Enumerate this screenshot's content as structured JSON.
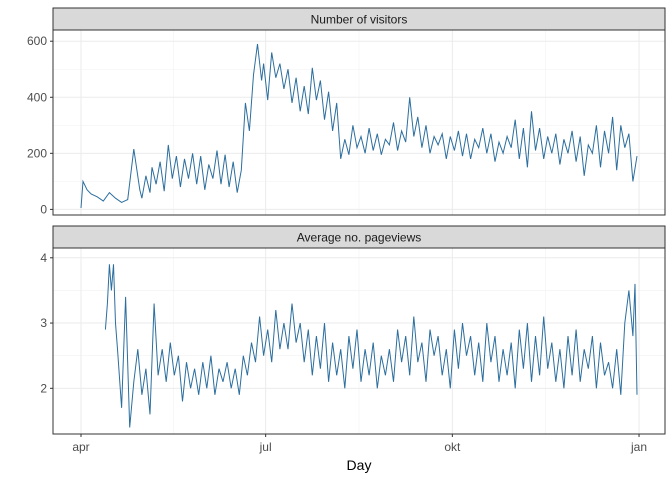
{
  "chart_data": {
    "type": "line",
    "xlabel": "Day",
    "x_tick_labels": [
      "apr",
      "jul",
      "okt",
      "jan"
    ],
    "x_tick_dates": [
      "2016-04-01",
      "2016-07-01",
      "2016-10-01",
      "2017-01-01"
    ],
    "x_start": "2016-04-01",
    "x_end": "2016-12-31",
    "grid": true,
    "line_color": "#2c6e9e",
    "panels": [
      {
        "title": "Number of visitors",
        "ylim": [
          -20,
          640
        ],
        "y_ticks": [
          0,
          200,
          400,
          600
        ],
        "y_tick_labels": [
          "0",
          "200",
          "400",
          "600"
        ],
        "x": [
          "2016-04-01",
          "2016-04-02",
          "2016-04-04",
          "2016-04-06",
          "2016-04-09",
          "2016-04-12",
          "2016-04-15",
          "2016-04-18",
          "2016-04-21",
          "2016-04-24",
          "2016-04-27",
          "2016-04-30",
          "2016-05-01",
          "2016-05-03",
          "2016-05-05",
          "2016-05-06",
          "2016-05-08",
          "2016-05-10",
          "2016-05-12",
          "2016-05-14",
          "2016-05-16",
          "2016-05-18",
          "2016-05-20",
          "2016-05-22",
          "2016-05-24",
          "2016-05-26",
          "2016-05-28",
          "2016-05-30",
          "2016-06-01",
          "2016-06-03",
          "2016-06-05",
          "2016-06-07",
          "2016-06-09",
          "2016-06-11",
          "2016-06-13",
          "2016-06-15",
          "2016-06-17",
          "2016-06-19",
          "2016-06-21",
          "2016-06-23",
          "2016-06-25",
          "2016-06-27",
          "2016-06-29",
          "2016-06-30",
          "2016-07-02",
          "2016-07-04",
          "2016-07-06",
          "2016-07-08",
          "2016-07-10",
          "2016-07-12",
          "2016-07-14",
          "2016-07-16",
          "2016-07-18",
          "2016-07-20",
          "2016-07-22",
          "2016-07-24",
          "2016-07-26",
          "2016-07-28",
          "2016-07-30",
          "2016-08-01",
          "2016-08-03",
          "2016-08-05",
          "2016-08-07",
          "2016-08-09",
          "2016-08-11",
          "2016-08-13",
          "2016-08-15",
          "2016-08-17",
          "2016-08-19",
          "2016-08-21",
          "2016-08-23",
          "2016-08-25",
          "2016-08-27",
          "2016-08-29",
          "2016-08-31",
          "2016-09-02",
          "2016-09-04",
          "2016-09-06",
          "2016-09-08",
          "2016-09-10",
          "2016-09-12",
          "2016-09-14",
          "2016-09-16",
          "2016-09-18",
          "2016-09-20",
          "2016-09-22",
          "2016-09-24",
          "2016-09-26",
          "2016-09-28",
          "2016-09-30",
          "2016-10-02",
          "2016-10-04",
          "2016-10-06",
          "2016-10-08",
          "2016-10-10",
          "2016-10-12",
          "2016-10-14",
          "2016-10-16",
          "2016-10-18",
          "2016-10-20",
          "2016-10-22",
          "2016-10-24",
          "2016-10-26",
          "2016-10-28",
          "2016-10-30",
          "2016-11-01",
          "2016-11-03",
          "2016-11-05",
          "2016-11-07",
          "2016-11-09",
          "2016-11-11",
          "2016-11-13",
          "2016-11-15",
          "2016-11-17",
          "2016-11-19",
          "2016-11-21",
          "2016-11-23",
          "2016-11-25",
          "2016-11-27",
          "2016-11-29",
          "2016-12-01",
          "2016-12-03",
          "2016-12-05",
          "2016-12-07",
          "2016-12-09",
          "2016-12-11",
          "2016-12-13",
          "2016-12-15",
          "2016-12-17",
          "2016-12-19",
          "2016-12-21",
          "2016-12-23",
          "2016-12-25",
          "2016-12-27",
          "2016-12-29",
          "2016-12-31"
        ],
        "values": [
          5,
          100,
          70,
          55,
          45,
          30,
          60,
          40,
          25,
          35,
          215,
          70,
          40,
          120,
          60,
          150,
          90,
          170,
          65,
          230,
          110,
          190,
          80,
          180,
          110,
          200,
          90,
          190,
          70,
          160,
          110,
          210,
          90,
          195,
          80,
          170,
          60,
          140,
          380,
          280,
          480,
          590,
          460,
          520,
          390,
          560,
          470,
          520,
          430,
          500,
          380,
          470,
          350,
          440,
          340,
          505,
          390,
          460,
          320,
          420,
          280,
          380,
          180,
          250,
          195,
          300,
          220,
          260,
          200,
          290,
          210,
          270,
          195,
          250,
          230,
          310,
          210,
          280,
          240,
          400,
          260,
          330,
          220,
          300,
          200,
          260,
          230,
          270,
          180,
          260,
          210,
          280,
          190,
          270,
          180,
          250,
          220,
          290,
          200,
          270,
          170,
          240,
          200,
          260,
          220,
          320,
          180,
          290,
          150,
          350,
          210,
          290,
          180,
          260,
          200,
          270,
          160,
          250,
          200,
          280,
          170,
          260,
          120,
          230,
          200,
          300,
          150,
          280,
          200,
          330,
          140,
          300,
          220,
          270,
          100,
          190
        ]
      },
      {
        "title": "Average no. pageviews",
        "ylim": [
          1.3,
          4.15
        ],
        "y_ticks": [
          2,
          3,
          4
        ],
        "y_tick_labels": [
          "2",
          "3",
          "4"
        ],
        "x": [
          "2016-04-13",
          "2016-04-14",
          "2016-04-15",
          "2016-04-16",
          "2016-04-17",
          "2016-04-18",
          "2016-04-19",
          "2016-04-21",
          "2016-04-23",
          "2016-04-25",
          "2016-04-27",
          "2016-04-29",
          "2016-05-01",
          "2016-05-03",
          "2016-05-05",
          "2016-05-07",
          "2016-05-09",
          "2016-05-11",
          "2016-05-13",
          "2016-05-15",
          "2016-05-17",
          "2016-05-19",
          "2016-05-21",
          "2016-05-23",
          "2016-05-25",
          "2016-05-27",
          "2016-05-29",
          "2016-05-31",
          "2016-06-02",
          "2016-06-04",
          "2016-06-06",
          "2016-06-08",
          "2016-06-10",
          "2016-06-12",
          "2016-06-14",
          "2016-06-16",
          "2016-06-18",
          "2016-06-20",
          "2016-06-22",
          "2016-06-24",
          "2016-06-26",
          "2016-06-28",
          "2016-06-30",
          "2016-07-02",
          "2016-07-04",
          "2016-07-06",
          "2016-07-08",
          "2016-07-10",
          "2016-07-12",
          "2016-07-14",
          "2016-07-16",
          "2016-07-18",
          "2016-07-20",
          "2016-07-22",
          "2016-07-24",
          "2016-07-26",
          "2016-07-28",
          "2016-07-30",
          "2016-08-01",
          "2016-08-03",
          "2016-08-05",
          "2016-08-07",
          "2016-08-09",
          "2016-08-11",
          "2016-08-13",
          "2016-08-15",
          "2016-08-17",
          "2016-08-19",
          "2016-08-21",
          "2016-08-23",
          "2016-08-25",
          "2016-08-27",
          "2016-08-29",
          "2016-08-31",
          "2016-09-02",
          "2016-09-04",
          "2016-09-06",
          "2016-09-08",
          "2016-09-10",
          "2016-09-12",
          "2016-09-14",
          "2016-09-16",
          "2016-09-18",
          "2016-09-20",
          "2016-09-22",
          "2016-09-24",
          "2016-09-26",
          "2016-09-28",
          "2016-09-30",
          "2016-10-02",
          "2016-10-04",
          "2016-10-06",
          "2016-10-08",
          "2016-10-10",
          "2016-10-12",
          "2016-10-14",
          "2016-10-16",
          "2016-10-18",
          "2016-10-20",
          "2016-10-22",
          "2016-10-24",
          "2016-10-26",
          "2016-10-28",
          "2016-10-30",
          "2016-11-01",
          "2016-11-03",
          "2016-11-05",
          "2016-11-07",
          "2016-11-09",
          "2016-11-11",
          "2016-11-13",
          "2016-11-15",
          "2016-11-17",
          "2016-11-19",
          "2016-11-21",
          "2016-11-23",
          "2016-11-25",
          "2016-11-27",
          "2016-11-29",
          "2016-12-01",
          "2016-12-03",
          "2016-12-05",
          "2016-12-07",
          "2016-12-09",
          "2016-12-11",
          "2016-12-13",
          "2016-12-15",
          "2016-12-17",
          "2016-12-19",
          "2016-12-21",
          "2016-12-23",
          "2016-12-25",
          "2016-12-27",
          "2016-12-29",
          "2016-12-30",
          "2016-12-31"
        ],
        "values": [
          2.9,
          3.3,
          3.9,
          3.5,
          3.9,
          3.0,
          2.6,
          1.7,
          3.4,
          1.4,
          2.1,
          2.6,
          1.9,
          2.3,
          1.6,
          3.3,
          2.2,
          2.6,
          2.1,
          2.7,
          2.2,
          2.5,
          1.8,
          2.4,
          2.0,
          2.3,
          1.9,
          2.4,
          2.0,
          2.5,
          1.9,
          2.3,
          2.1,
          2.4,
          2.0,
          2.3,
          1.9,
          2.5,
          2.2,
          2.7,
          2.4,
          3.1,
          2.5,
          2.9,
          2.4,
          3.2,
          2.6,
          3.0,
          2.6,
          3.3,
          2.7,
          3.0,
          2.4,
          2.9,
          2.2,
          2.8,
          2.3,
          3.0,
          2.1,
          2.7,
          2.2,
          2.6,
          2.0,
          2.8,
          2.3,
          2.9,
          2.1,
          2.6,
          2.2,
          2.7,
          2.0,
          2.5,
          2.2,
          2.6,
          2.1,
          2.9,
          2.4,
          2.8,
          2.2,
          3.1,
          2.4,
          2.7,
          2.1,
          2.9,
          2.5,
          2.8,
          2.2,
          2.6,
          2.0,
          2.9,
          2.3,
          3.0,
          2.5,
          2.8,
          2.2,
          2.7,
          2.1,
          3.0,
          2.4,
          2.8,
          2.1,
          2.6,
          2.2,
          2.7,
          2.0,
          2.9,
          2.3,
          3.0,
          2.1,
          2.8,
          2.2,
          3.1,
          2.3,
          2.7,
          2.1,
          2.6,
          2.0,
          2.8,
          2.2,
          2.9,
          2.1,
          2.6,
          2.3,
          2.8,
          2.0,
          2.7,
          2.2,
          2.4,
          2.0,
          2.6,
          1.9,
          3.0,
          3.5,
          2.8,
          3.6,
          1.9
        ]
      }
    ]
  }
}
